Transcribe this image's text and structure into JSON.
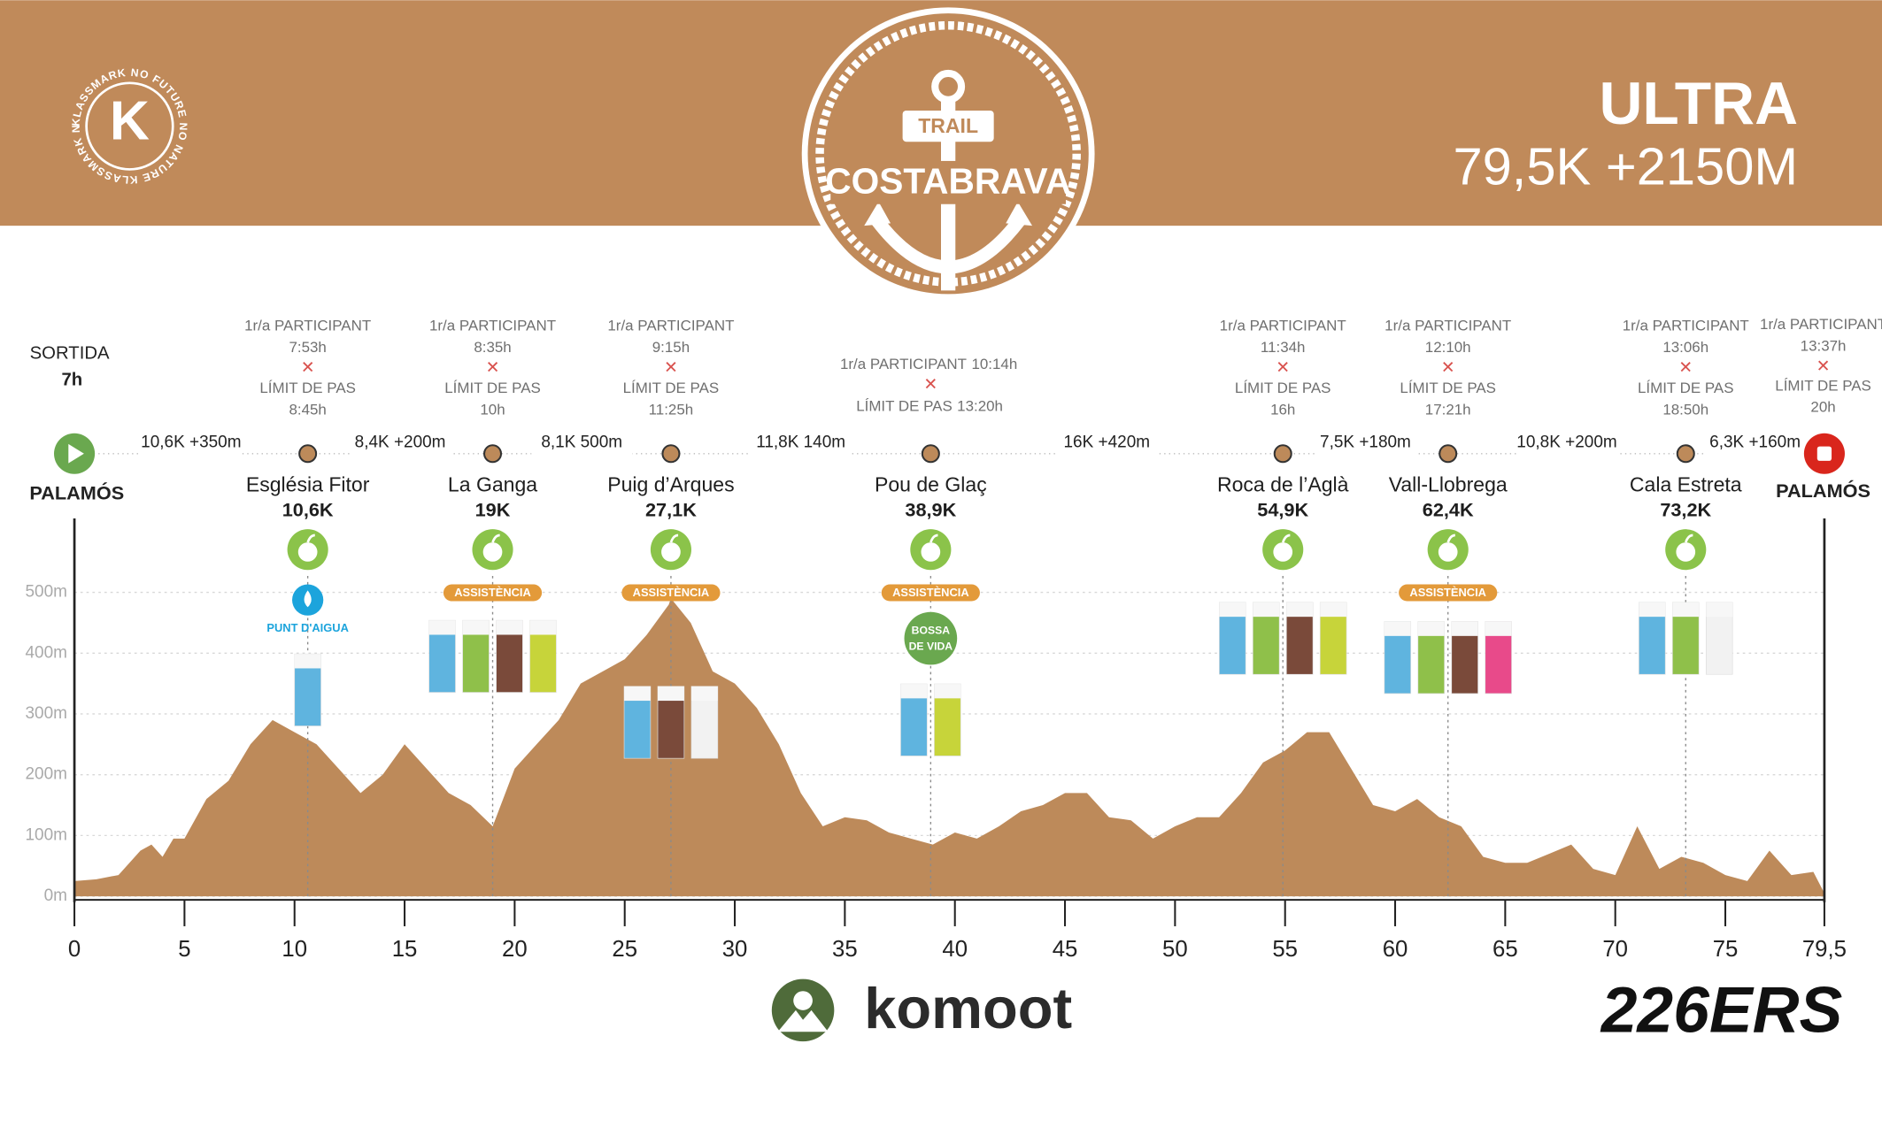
{
  "header": {
    "brand_ring": "KLASSMARK NO FUTURE NO NATURE KLASSMARK NO FUTURE NO NATURE",
    "brand_letter": "K",
    "logo_top": "TRAIL",
    "logo_name": "COSTABRAVA",
    "race": "ULTRA",
    "distance": "79,5K +2150M"
  },
  "start": {
    "label": "SORTIDA",
    "time": "7h",
    "place": "PALAMÓS"
  },
  "finish": {
    "first_label": "1r/a PARTICIPANT",
    "first_time": "13:37h",
    "limit_label": "LÍMIT DE PAS",
    "limit_time": "20h",
    "place": "PALAMÓS"
  },
  "checkpoints": [
    {
      "name": "Església Fitor",
      "km": 10.6,
      "km_label": "10,6K",
      "first_label": "1r/a PARTICIPANT",
      "first_time": "7:53h",
      "limit_label": "LÍMIT DE PAS",
      "limit_time": "8:45h",
      "water": "PUNT D'AIGUA"
    },
    {
      "name": "La Ganga",
      "km": 19,
      "km_label": "19K",
      "first_label": "1r/a PARTICIPANT",
      "first_time": "8:35h",
      "limit_label": "LÍMIT DE PAS",
      "limit_time": "10h",
      "assist": "ASSISTÈNCIA"
    },
    {
      "name": "Puig d’Arques",
      "km": 27.1,
      "km_label": "27,1K",
      "first_label": "1r/a PARTICIPANT",
      "first_time": "9:15h",
      "limit_label": "LÍMIT DE PAS",
      "limit_time": "11:25h",
      "assist": "ASSISTÈNCIA"
    },
    {
      "name": "Pou de Glaç",
      "km": 38.9,
      "km_label": "38,9K",
      "first_label": "1r/a PARTICIPANT",
      "first_time": "10:14h",
      "limit_label": "LÍMIT DE PAS",
      "limit_time": "13:20h",
      "assist": "ASSISTÈNCIA",
      "bag": [
        "BOSSA",
        "DE VIDA"
      ]
    },
    {
      "name": "Roca de l’Aglà",
      "km": 54.9,
      "km_label": "54,9K",
      "first_label": "1r/a PARTICIPANT",
      "first_time": "11:34h",
      "limit_label": "LÍMIT DE PAS",
      "limit_time": "16h"
    },
    {
      "name": "Vall-Llobrega",
      "km": 62.4,
      "km_label": "62,4K",
      "first_label": "1r/a PARTICIPANT",
      "first_time": "12:10h",
      "limit_label": "LÍMIT DE PAS",
      "limit_time": "17:21h",
      "assist": "ASSISTÈNCIA"
    },
    {
      "name": "Cala Estreta",
      "km": 73.2,
      "km_label": "73,2K",
      "first_label": "1r/a PARTICIPANT",
      "first_time": "13:06h",
      "limit_label": "LÍMIT DE PAS",
      "limit_time": "18:50h"
    }
  ],
  "segments": [
    "10,6K +350m",
    "8,4K +200m",
    "8,1K 500m",
    "11,8K 140m",
    "16K +420m",
    "7,5K +180m",
    "10,8K +200m",
    "6,3K +160m"
  ],
  "chart_data": {
    "type": "area",
    "x": [
      0,
      1,
      2,
      3,
      3.5,
      4,
      4.5,
      5,
      6,
      7,
      8,
      9,
      10,
      11,
      12,
      13,
      14,
      15,
      16,
      17,
      18,
      19,
      20,
      21,
      22,
      23,
      24,
      25,
      26,
      27,
      27.1,
      28,
      29,
      30,
      31,
      32,
      33,
      34,
      35,
      36,
      37,
      38,
      39,
      40,
      41,
      42,
      43,
      44,
      45,
      46,
      47,
      48,
      49,
      50,
      51,
      52,
      53,
      54,
      55,
      56,
      57,
      58,
      59,
      60,
      61,
      62,
      63,
      64,
      65,
      66,
      67,
      68,
      69,
      70,
      71,
      72,
      73,
      74,
      75,
      76,
      77,
      78,
      79,
      79.5
    ],
    "values": [
      25,
      28,
      35,
      75,
      85,
      65,
      95,
      95,
      160,
      190,
      250,
      290,
      270,
      250,
      210,
      170,
      200,
      250,
      210,
      170,
      150,
      115,
      210,
      250,
      290,
      350,
      370,
      390,
      430,
      480,
      490,
      450,
      370,
      350,
      310,
      250,
      170,
      115,
      130,
      125,
      105,
      95,
      85,
      105,
      95,
      115,
      140,
      150,
      170,
      170,
      130,
      125,
      95,
      115,
      130,
      130,
      170,
      220,
      240,
      270,
      270,
      210,
      150,
      140,
      160,
      130,
      115,
      65,
      55,
      55,
      70,
      85,
      45,
      35,
      115,
      45,
      65,
      55,
      35,
      25,
      75,
      35,
      40,
      5
    ],
    "color": "#bd8a5a",
    "xlim": [
      0,
      79.5
    ],
    "ylim": [
      0,
      600
    ],
    "xticks": [
      0,
      5,
      10,
      15,
      20,
      25,
      30,
      35,
      40,
      45,
      50,
      55,
      60,
      65,
      70,
      75,
      {
        "value": 79.5,
        "label": "79,5"
      }
    ],
    "yticks": [
      {
        "value": 0,
        "label": "0m"
      },
      {
        "value": 100,
        "label": "100m"
      },
      {
        "value": 200,
        "label": "200m"
      },
      {
        "value": 300,
        "label": "300m"
      },
      {
        "value": 400,
        "label": "400m"
      },
      {
        "value": 500,
        "label": "500m"
      }
    ],
    "grid": true
  },
  "footer": {
    "map": "komoot",
    "sponsor": "226ERS"
  }
}
